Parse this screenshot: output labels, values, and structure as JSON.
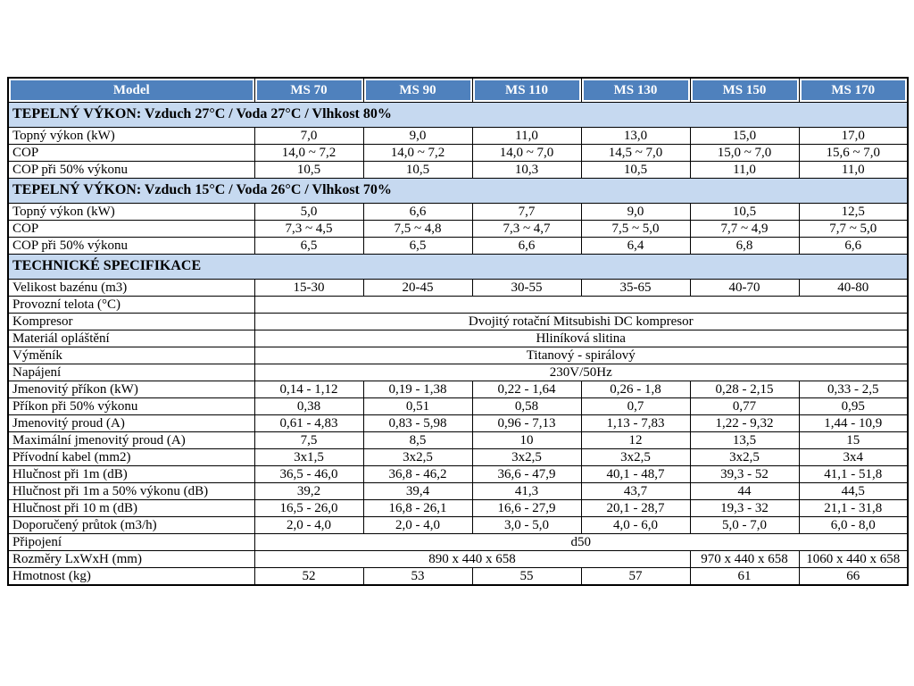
{
  "table": {
    "colors": {
      "header_bg": "#4f81bd",
      "header_text": "#ffffff",
      "section_bg": "#c6d9f0",
      "border": "#000000"
    },
    "header": [
      "Model",
      "MS 70",
      "MS 90",
      "MS 110",
      "MS 130",
      "MS 150",
      "MS 170"
    ],
    "sections": [
      {
        "title": "TEPELNÝ VÝKON: Vzduch 27°C / Voda 27°C / Vlhkost 80%",
        "rows": [
          {
            "label": "Topný výkon (kW)",
            "cells": [
              {
                "t": "7,0"
              },
              {
                "t": "9,0"
              },
              {
                "t": "11,0"
              },
              {
                "t": "13,0"
              },
              {
                "t": "15,0"
              },
              {
                "t": "17,0"
              }
            ]
          },
          {
            "label": "COP",
            "cells": [
              {
                "t": "14,0 ~ 7,2"
              },
              {
                "t": "14,0 ~ 7,2"
              },
              {
                "t": "14,0 ~ 7,0"
              },
              {
                "t": "14,5 ~ 7,0"
              },
              {
                "t": "15,0 ~ 7,0"
              },
              {
                "t": "15,6 ~ 7,0"
              }
            ]
          },
          {
            "label": "COP při 50% výkonu",
            "cells": [
              {
                "t": "10,5"
              },
              {
                "t": "10,5"
              },
              {
                "t": "10,3"
              },
              {
                "t": "10,5"
              },
              {
                "t": "11,0"
              },
              {
                "t": "11,0"
              }
            ]
          }
        ]
      },
      {
        "title": "TEPELNÝ VÝKON: Vzduch 15°C / Voda 26°C / Vlhkost 70%",
        "rows": [
          {
            "label": "Topný výkon (kW)",
            "cells": [
              {
                "t": "5,0"
              },
              {
                "t": "6,6"
              },
              {
                "t": "7,7"
              },
              {
                "t": "9,0"
              },
              {
                "t": "10,5"
              },
              {
                "t": "12,5"
              }
            ]
          },
          {
            "label": "COP",
            "cells": [
              {
                "t": "7,3 ~ 4,5"
              },
              {
                "t": "7,5 ~ 4,8"
              },
              {
                "t": "7,3 ~ 4,7"
              },
              {
                "t": "7,5 ~ 5,0"
              },
              {
                "t": "7,7 ~ 4,9"
              },
              {
                "t": "7,7 ~ 5,0"
              }
            ]
          },
          {
            "label": "COP při 50% výkonu",
            "cells": [
              {
                "t": "6,5"
              },
              {
                "t": "6,5"
              },
              {
                "t": "6,6"
              },
              {
                "t": "6,4"
              },
              {
                "t": "6,8"
              },
              {
                "t": "6,6"
              }
            ]
          }
        ]
      },
      {
        "title": "TECHNICKÉ SPECIFIKACE",
        "rows": [
          {
            "label": "Velikost bazénu (m3)",
            "cells": [
              {
                "t": "15-30"
              },
              {
                "t": "20-45"
              },
              {
                "t": "30-55"
              },
              {
                "t": "35-65"
              },
              {
                "t": "40-70"
              },
              {
                "t": "40-80"
              }
            ]
          },
          {
            "label": "Provozní telota (°C)",
            "cells": [
              {
                "t": "",
                "span": 6
              }
            ]
          },
          {
            "label": "Kompresor",
            "cells": [
              {
                "t": "Dvojitý rotační Mitsubishi DC kompresor",
                "span": 6
              }
            ]
          },
          {
            "label": "Materiál opláštění",
            "cells": [
              {
                "t": "Hliníková slitina",
                "span": 6
              }
            ]
          },
          {
            "label": "Výměník",
            "cells": [
              {
                "t": "Titanový - spirálový",
                "span": 6
              }
            ]
          },
          {
            "label": "Napájení",
            "cells": [
              {
                "t": "230V/50Hz",
                "span": 6
              }
            ]
          },
          {
            "label": "Jmenovitý příkon (kW)",
            "cells": [
              {
                "t": "0,14 - 1,12"
              },
              {
                "t": "0,19 - 1,38"
              },
              {
                "t": "0,22 - 1,64"
              },
              {
                "t": "0,26 - 1,8"
              },
              {
                "t": "0,28 - 2,15"
              },
              {
                "t": "0,33 - 2,5"
              }
            ]
          },
          {
            "label": "Příkon při 50% výkonu",
            "cells": [
              {
                "t": "0,38"
              },
              {
                "t": "0,51"
              },
              {
                "t": "0,58"
              },
              {
                "t": "0,7"
              },
              {
                "t": "0,77"
              },
              {
                "t": "0,95"
              }
            ]
          },
          {
            "label": "Jmenovitý proud (A)",
            "cells": [
              {
                "t": "0,61 - 4,83"
              },
              {
                "t": "0,83 - 5,98"
              },
              {
                "t": "0,96 - 7,13"
              },
              {
                "t": "1,13 - 7,83"
              },
              {
                "t": "1,22 - 9,32"
              },
              {
                "t": "1,44 - 10,9"
              }
            ]
          },
          {
            "label": "Maximální jmenovitý proud (A)",
            "cells": [
              {
                "t": "7,5"
              },
              {
                "t": "8,5"
              },
              {
                "t": "10"
              },
              {
                "t": "12"
              },
              {
                "t": "13,5"
              },
              {
                "t": "15"
              }
            ]
          },
          {
            "label": "Přívodní kabel (mm2)",
            "cells": [
              {
                "t": "3x1,5"
              },
              {
                "t": "3x2,5"
              },
              {
                "t": "3x2,5"
              },
              {
                "t": "3x2,5"
              },
              {
                "t": "3x2,5"
              },
              {
                "t": "3x4"
              }
            ]
          },
          {
            "label": "Hlučnost při 1m (dB)",
            "cells": [
              {
                "t": "36,5 - 46,0"
              },
              {
                "t": "36,8 - 46,2"
              },
              {
                "t": "36,6 - 47,9"
              },
              {
                "t": "40,1 - 48,7"
              },
              {
                "t": "39,3 - 52"
              },
              {
                "t": "41,1 - 51,8"
              }
            ]
          },
          {
            "label": "Hlučnost při 1m a 50% výkonu (dB)",
            "cells": [
              {
                "t": "39,2"
              },
              {
                "t": "39,4"
              },
              {
                "t": "41,3"
              },
              {
                "t": "43,7"
              },
              {
                "t": "44"
              },
              {
                "t": "44,5"
              }
            ]
          },
          {
            "label": "Hlučnost při 10 m (dB)",
            "cells": [
              {
                "t": "16,5 - 26,0"
              },
              {
                "t": "16,8 - 26,1"
              },
              {
                "t": "16,6 - 27,9"
              },
              {
                "t": "20,1 - 28,7"
              },
              {
                "t": "19,3 - 32"
              },
              {
                "t": "21,1 - 31,8"
              }
            ]
          },
          {
            "label": "Doporučený průtok (m3/h)",
            "cells": [
              {
                "t": "2,0 - 4,0"
              },
              {
                "t": "2,0 - 4,0"
              },
              {
                "t": "3,0 - 5,0"
              },
              {
                "t": "4,0 - 6,0"
              },
              {
                "t": "5,0 - 7,0"
              },
              {
                "t": "6,0 - 8,0"
              }
            ]
          },
          {
            "label": "Připojení",
            "cells": [
              {
                "t": "d50",
                "span": 6
              }
            ]
          },
          {
            "label": "Rozměry LxWxH (mm)",
            "cells": [
              {
                "t": "890 x 440 x 658",
                "span": 4
              },
              {
                "t": "970 x 440 x 658"
              },
              {
                "t": "1060 x 440 x 658"
              }
            ]
          },
          {
            "label": "Hmotnost (kg)",
            "cells": [
              {
                "t": "52"
              },
              {
                "t": "53"
              },
              {
                "t": "55"
              },
              {
                "t": "57"
              },
              {
                "t": "61"
              },
              {
                "t": "66"
              }
            ]
          }
        ]
      }
    ]
  }
}
